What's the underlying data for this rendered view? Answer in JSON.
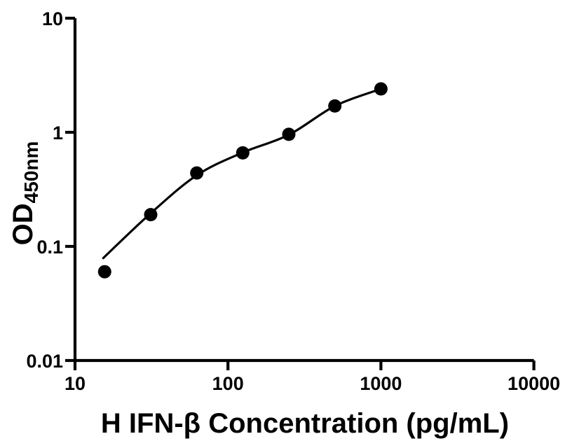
{
  "figure": {
    "background": "#ffffff",
    "ink_color": "#000000"
  },
  "chart_data": {
    "type": "scatter",
    "title": "",
    "xlabel": "H IFN-β Concentration (pg/mL)",
    "ylabel_main": "OD",
    "ylabel_sub": "450nm",
    "x_scale": "log",
    "y_scale": "log",
    "xlim": [
      10,
      10000
    ],
    "ylim": [
      0.01,
      10
    ],
    "grid": false,
    "legend_position": "none",
    "x_ticks": [
      {
        "value": 10,
        "label": "10"
      },
      {
        "value": 100,
        "label": "100"
      },
      {
        "value": 1000,
        "label": "1000"
      },
      {
        "value": 10000,
        "label": "10000"
      }
    ],
    "y_ticks": [
      {
        "value": 0.01,
        "label": "0.01"
      },
      {
        "value": 0.1,
        "label": "0.1"
      },
      {
        "value": 1,
        "label": "1"
      },
      {
        "value": 10,
        "label": "10"
      }
    ],
    "series": [
      {
        "marker": "circle",
        "color": "#000000",
        "points": [
          {
            "x": 15.625,
            "y": 0.06
          },
          {
            "x": 31.25,
            "y": 0.19
          },
          {
            "x": 62.5,
            "y": 0.44
          },
          {
            "x": 125,
            "y": 0.66
          },
          {
            "x": 250,
            "y": 0.96
          },
          {
            "x": 500,
            "y": 1.7
          },
          {
            "x": 1000,
            "y": 2.4
          }
        ]
      }
    ],
    "fit_curve": {
      "color": "#000000",
      "points": [
        [
          15.3,
          0.079
        ],
        [
          31.25,
          0.195
        ],
        [
          62.5,
          0.42
        ],
        [
          125,
          0.665
        ],
        [
          250,
          0.95
        ],
        [
          500,
          1.7
        ],
        [
          1000,
          2.4
        ]
      ]
    }
  }
}
